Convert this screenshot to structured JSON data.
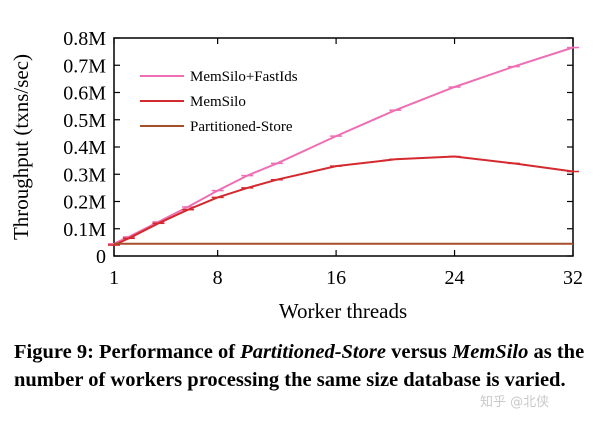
{
  "chart_data": {
    "type": "line",
    "xlabel": "Worker threads",
    "ylabel": "Throughput (txns/sec)",
    "xlim": [
      1,
      32
    ],
    "ylim": [
      0,
      800000
    ],
    "x_ticks": [
      "1",
      "8",
      "16",
      "24",
      "32"
    ],
    "y_ticks": [
      "0",
      "0.1M",
      "0.2M",
      "0.3M",
      "0.4M",
      "0.5M",
      "0.6M",
      "0.7M",
      "0.8M"
    ],
    "legend_position": "top-left",
    "series": [
      {
        "name": "MemSilo+FastIds",
        "color": "#ee6fb3",
        "x": [
          1,
          2,
          4,
          6,
          8,
          10,
          12,
          16,
          20,
          24,
          28,
          32
        ],
        "y": [
          45000,
          70000,
          125000,
          180000,
          240000,
          295000,
          340000,
          440000,
          535000,
          620000,
          695000,
          765000
        ]
      },
      {
        "name": "MemSilo",
        "color": "#d42a2f",
        "x": [
          1,
          2,
          4,
          6,
          8,
          10,
          12,
          16,
          20,
          24,
          28,
          32
        ],
        "y": [
          40000,
          65000,
          120000,
          170000,
          215000,
          250000,
          280000,
          330000,
          355000,
          365000,
          340000,
          310000
        ]
      },
      {
        "name": "Partitioned-Store",
        "color": "#a64d2a",
        "x": [
          1,
          32
        ],
        "y": [
          45000,
          45000
        ]
      }
    ]
  },
  "caption": {
    "prefix": "Figure 9: Performance of ",
    "em1": "Partitioned-Store",
    "mid": " versus ",
    "em2": "MemSilo",
    "suffix": " as the number of workers processing the same size database is varied."
  },
  "watermark": "知乎 @北侠"
}
